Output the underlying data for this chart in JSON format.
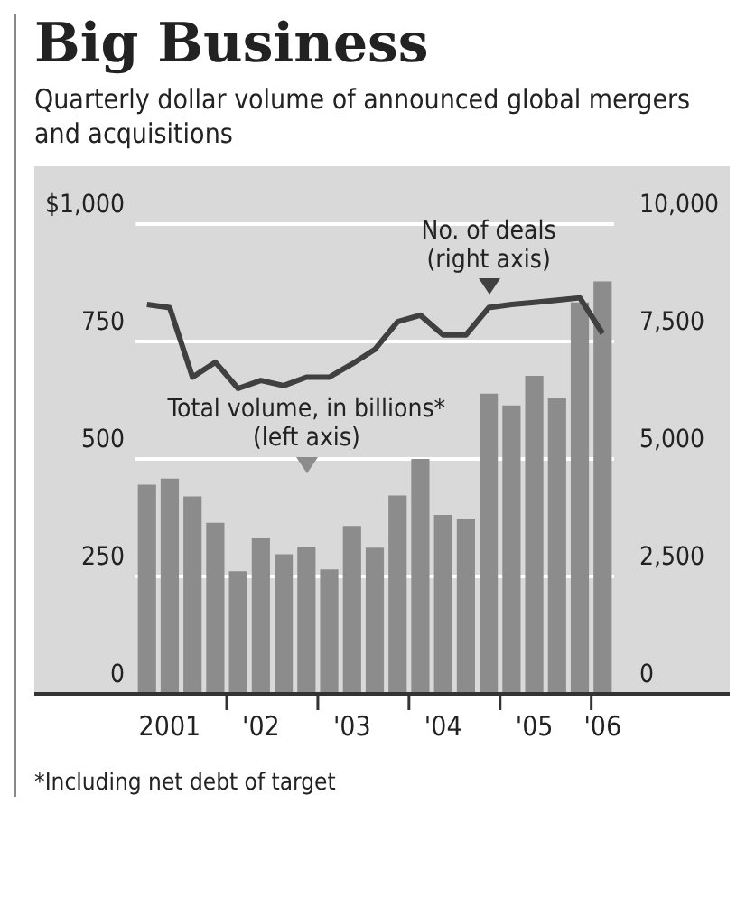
{
  "chart_data": {
    "type": "bar",
    "title": "Big Business",
    "subtitle": "Quarterly dollar volume of announced global mergers and acquisitions",
    "categories": [
      null,
      "2001",
      null,
      null,
      null,
      "'02",
      null,
      null,
      null,
      "'03",
      null,
      null,
      null,
      "'04",
      null,
      null,
      null,
      "'05",
      null,
      null,
      "'06"
    ],
    "series": [
      {
        "color": "#8c8c8c",
        "values": [
          445,
          458,
          420,
          364,
          261,
          332,
          297,
          313,
          265,
          357,
          311,
          422,
          500,
          381,
          372,
          639,
          614,
          677,
          630,
          833,
          878
        ]
      },
      {
        "type": "line",
        "axis": "y2",
        "color": "#404040",
        "values": [
          8290,
          8220,
          6740,
          7060,
          6500,
          6670,
          6560,
          6740,
          6740,
          7020,
          7330,
          7920,
          8060,
          7640,
          7640,
          8220,
          8290,
          8330,
          8380,
          8430,
          7670
        ]
      }
    ],
    "ylim": [
      0,
      1000
    ],
    "yticks": [
      0,
      250,
      500,
      750,
      {
        "value": 1000,
        "label": "$1,000"
      }
    ],
    "y2lim": [
      0,
      10000
    ],
    "y2ticks": [
      0,
      {
        "value": 2500,
        "label": "2,500"
      },
      {
        "value": 5000,
        "label": "5,000"
      },
      {
        "value": 7500,
        "label": "7,500"
      },
      {
        "value": 10000,
        "label": "10,000"
      }
    ],
    "grid": "y",
    "legend": false,
    "marker": "none",
    "annotations": [
      "No. of deals\n(right axis)",
      "Total volume, in billions*\n(left axis)",
      "*Including net debt of target"
    ]
  }
}
